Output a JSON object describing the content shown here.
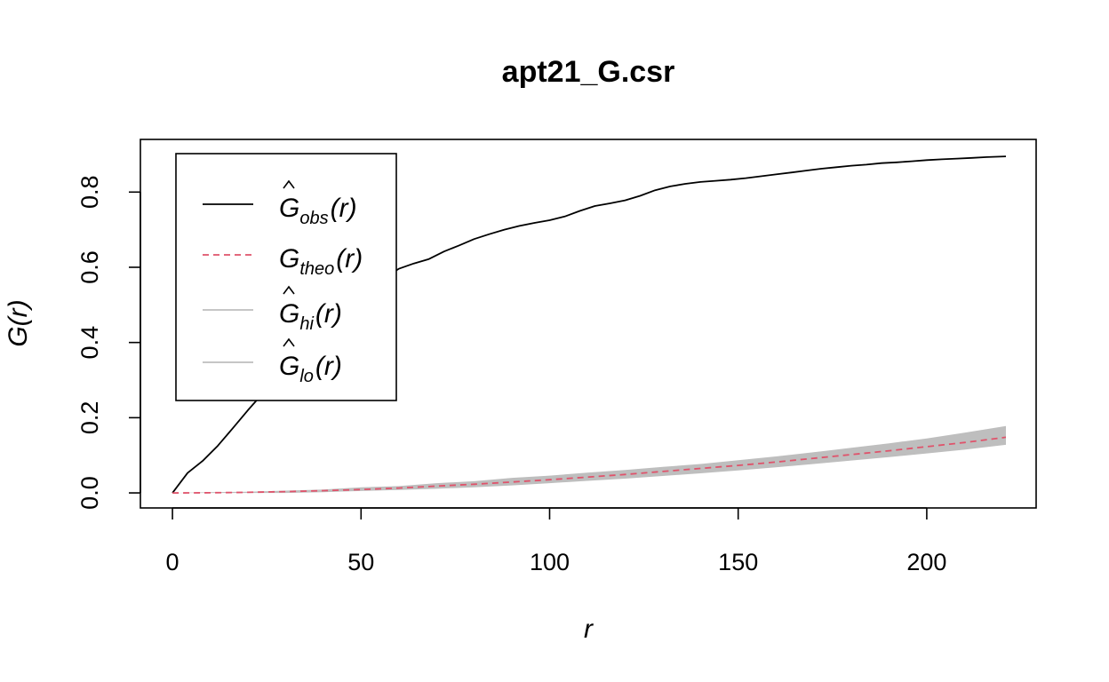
{
  "chart_data": {
    "type": "line",
    "title": "apt21_G.csr",
    "xlabel": "r",
    "ylabel": "G(r)",
    "xlim": [
      -8.5,
      229
    ],
    "ylim": [
      -0.04,
      0.94
    ],
    "x_ticks": [
      0,
      50,
      100,
      150,
      200
    ],
    "x_tick_labels": [
      "0",
      "50",
      "100",
      "150",
      "200"
    ],
    "y_ticks": [
      0.0,
      0.2,
      0.4,
      0.6,
      0.8
    ],
    "y_tick_labels": [
      "0.0",
      "0.2",
      "0.4",
      "0.6",
      "0.8"
    ],
    "legend_position": "top-left",
    "colors": {
      "obs": "#000000",
      "theo": "#DF536B",
      "band": "#BEBEBE"
    },
    "legend": [
      {
        "key": "obs",
        "hat": true,
        "base": "G",
        "sub": "obs",
        "suffix": "(r)",
        "style": "solid",
        "color": "#000000"
      },
      {
        "key": "theo",
        "hat": false,
        "base": "G",
        "sub": "theo",
        "suffix": "(r)",
        "style": "dashed",
        "color": "#DF536B"
      },
      {
        "key": "hi",
        "hat": true,
        "base": "G",
        "sub": "hi",
        "suffix": "(r)",
        "style": "solid",
        "color": "#BEBEBE"
      },
      {
        "key": "lo",
        "hat": true,
        "base": "G",
        "sub": "lo",
        "suffix": "(r)",
        "style": "solid",
        "color": "#BEBEBE"
      }
    ],
    "series": [
      {
        "key": "obs",
        "x": [
          0,
          4,
          8,
          12,
          16,
          20,
          24,
          28,
          32,
          36,
          40,
          44,
          48,
          52,
          56,
          60,
          64,
          68,
          72,
          76,
          80,
          84,
          88,
          92,
          96,
          100,
          104,
          108,
          112,
          116,
          120,
          124,
          128,
          132,
          136,
          140,
          144,
          148,
          152,
          156,
          160,
          164,
          168,
          172,
          176,
          180,
          184,
          188,
          192,
          196,
          200,
          204,
          208,
          212,
          216,
          221
        ],
        "y": [
          0.0,
          0.053,
          0.085,
          0.125,
          0.172,
          0.22,
          0.265,
          0.308,
          0.35,
          0.4,
          0.44,
          0.48,
          0.52,
          0.545,
          0.57,
          0.596,
          0.61,
          0.622,
          0.642,
          0.658,
          0.675,
          0.688,
          0.7,
          0.71,
          0.718,
          0.725,
          0.735,
          0.75,
          0.763,
          0.77,
          0.778,
          0.79,
          0.805,
          0.815,
          0.822,
          0.827,
          0.83,
          0.833,
          0.837,
          0.842,
          0.847,
          0.852,
          0.857,
          0.862,
          0.866,
          0.87,
          0.873,
          0.877,
          0.879,
          0.882,
          0.885,
          0.887,
          0.889,
          0.891,
          0.893,
          0.895
        ]
      },
      {
        "key": "theo",
        "x": [
          0,
          10,
          20,
          30,
          40,
          50,
          60,
          70,
          80,
          90,
          100,
          110,
          120,
          130,
          140,
          150,
          160,
          170,
          180,
          190,
          200,
          210,
          221
        ],
        "y": [
          0.0,
          0.0004,
          0.0015,
          0.0035,
          0.006,
          0.009,
          0.013,
          0.018,
          0.023,
          0.029,
          0.035,
          0.042,
          0.049,
          0.057,
          0.065,
          0.073,
          0.082,
          0.092,
          0.102,
          0.112,
          0.123,
          0.134,
          0.148
        ]
      },
      {
        "key": "hi",
        "x": [
          0,
          10,
          20,
          30,
          40,
          50,
          60,
          70,
          80,
          90,
          100,
          110,
          120,
          130,
          140,
          150,
          160,
          170,
          180,
          190,
          200,
          210,
          221
        ],
        "y": [
          0.0,
          0.002,
          0.003,
          0.006,
          0.009,
          0.015,
          0.018,
          0.026,
          0.031,
          0.04,
          0.046,
          0.054,
          0.061,
          0.069,
          0.077,
          0.087,
          0.097,
          0.108,
          0.12,
          0.132,
          0.145,
          0.16,
          0.178
        ]
      },
      {
        "key": "lo",
        "x": [
          0,
          10,
          20,
          30,
          40,
          50,
          60,
          70,
          80,
          90,
          100,
          110,
          120,
          130,
          140,
          150,
          160,
          170,
          180,
          190,
          200,
          210,
          221
        ],
        "y": [
          0.0,
          0.0,
          0.0,
          0.0,
          0.002,
          0.005,
          0.008,
          0.011,
          0.015,
          0.02,
          0.026,
          0.032,
          0.038,
          0.045,
          0.052,
          0.06,
          0.068,
          0.077,
          0.086,
          0.095,
          0.105,
          0.115,
          0.128
        ]
      }
    ]
  }
}
